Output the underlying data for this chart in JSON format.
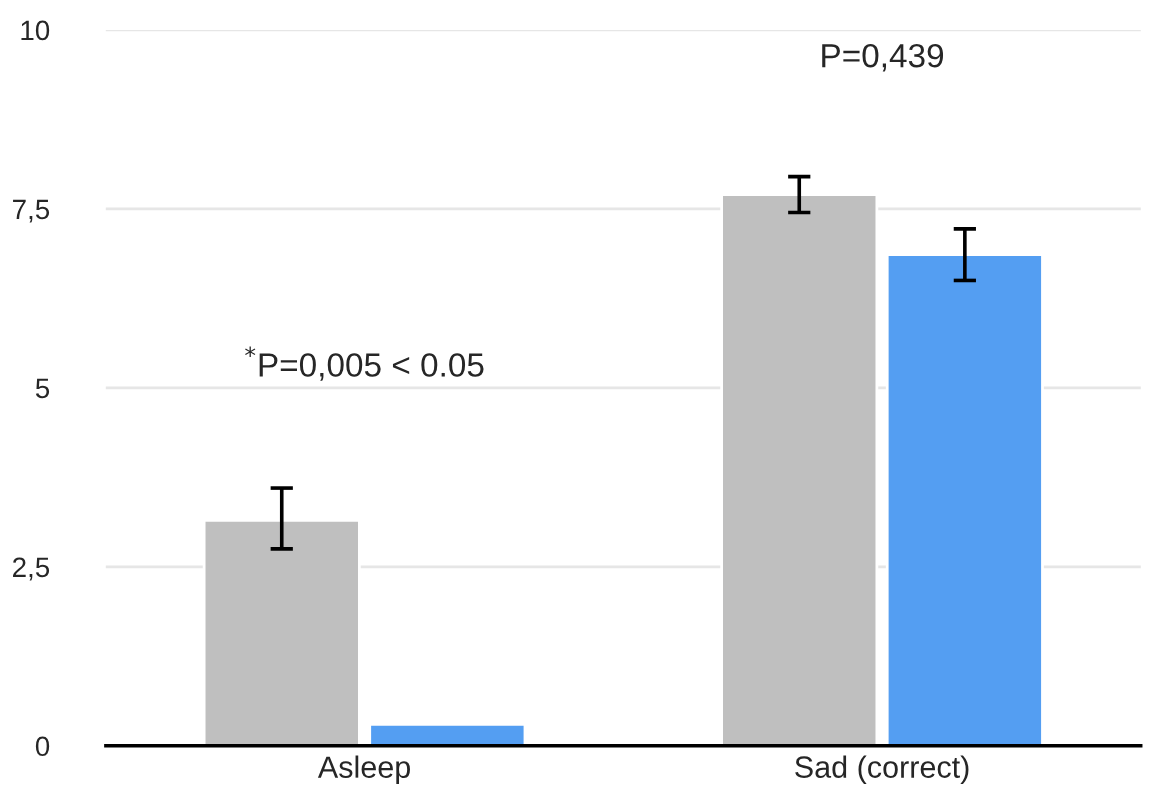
{
  "chart_data": {
    "type": "bar",
    "categories": [
      "Asleep",
      "Sad (correct)"
    ],
    "series": [
      {
        "color": "#bfbfbf",
        "values": [
          3.15,
          7.7
        ],
        "errors": [
          [
            2.75,
            3.6
          ],
          [
            7.45,
            7.95
          ]
        ]
      },
      {
        "color": "#549ef2",
        "values": [
          0.3,
          6.86
        ],
        "errors": [
          null,
          [
            6.5,
            7.22
          ]
        ]
      }
    ],
    "ylim": [
      0,
      10
    ],
    "yticks": [
      0,
      {
        "value": 2.5,
        "label": "2,5"
      },
      5,
      {
        "value": 7.5,
        "label": "7,5"
      },
      10
    ],
    "grid": "y",
    "legend": false,
    "annotations": [
      "$^{*}$P=0,005 < 0.05",
      "P=0,439"
    ]
  }
}
